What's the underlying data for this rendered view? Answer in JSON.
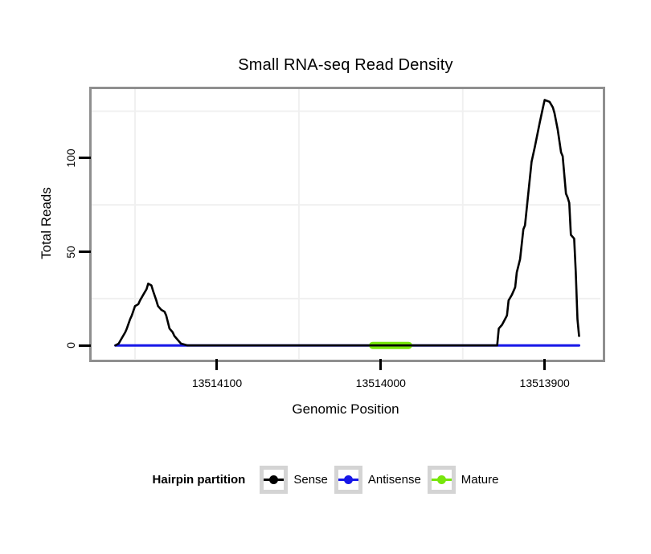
{
  "title": "Small RNA-seq Read Density",
  "colors": {
    "sense": "#000000",
    "antisense": "#1717e8",
    "mature": "#77e60c",
    "panel_border": "#8f8f8f",
    "grid_minor": "#f0f0f0",
    "legend_key_border": "#d4d4d4",
    "text": "#000000",
    "background": "#ffffff"
  },
  "axes": {
    "x_title": "Genomic Position",
    "y_title": "Total Reads"
  },
  "legend": {
    "title": "Hairpin partition",
    "entries": [
      {
        "label": "Sense",
        "color": "#000000"
      },
      {
        "label": "Antisense",
        "color": "#1717e8"
      },
      {
        "label": "Mature",
        "color": "#77e60c"
      }
    ]
  },
  "chart_data": {
    "type": "line",
    "title": "Small RNA-seq Read Density",
    "xlabel": "Genomic Position",
    "ylabel": "Total Reads",
    "x_reversed": true,
    "xlim": [
      13514177,
      13513866
    ],
    "ylim": [
      -7.2,
      137.2
    ],
    "x_ticks": [
      13514100,
      13514000,
      13513900
    ],
    "x_tick_labels": [
      "13514100",
      "13514000",
      "13513900"
    ],
    "y_ticks": [
      0,
      50,
      100
    ],
    "y_tick_labels": [
      "0",
      "50",
      "100"
    ],
    "grid": {
      "color": "#f0f0f0",
      "x_minor": [
        13514150,
        13514050,
        13513950
      ],
      "y_minor": [
        25,
        75,
        125
      ]
    },
    "legend_position": "bottom",
    "series": [
      {
        "name": "Antisense",
        "color": "#1717e8",
        "width": 3,
        "points": [
          [
            13514162,
            0
          ],
          [
            13513879,
            0
          ]
        ]
      },
      {
        "name": "Mature",
        "color": "#77e60c",
        "width": 9,
        "points": [
          [
            13514005,
            0
          ],
          [
            13513983,
            0
          ]
        ]
      },
      {
        "name": "Sense",
        "color": "#000000",
        "width": 2.6,
        "points": [
          [
            13514162,
            0
          ],
          [
            13514160,
            1
          ],
          [
            13514158,
            4
          ],
          [
            13514156,
            7
          ],
          [
            13514155,
            9
          ],
          [
            13514153,
            14
          ],
          [
            13514152,
            16
          ],
          [
            13514150,
            21
          ],
          [
            13514148,
            22
          ],
          [
            13514147,
            24
          ],
          [
            13514145,
            27
          ],
          [
            13514143,
            30
          ],
          [
            13514142,
            33
          ],
          [
            13514140,
            32
          ],
          [
            13514139,
            29
          ],
          [
            13514137,
            24
          ],
          [
            13514136,
            21
          ],
          [
            13514134,
            19
          ],
          [
            13514132,
            18
          ],
          [
            13514131,
            16
          ],
          [
            13514129,
            9
          ],
          [
            13514127,
            7
          ],
          [
            13514126,
            5
          ],
          [
            13514122,
            1
          ],
          [
            13514118,
            0
          ],
          [
            13513929,
            0
          ],
          [
            13513928,
            9
          ],
          [
            13513927,
            10
          ],
          [
            13513926,
            11
          ],
          [
            13513923,
            16
          ],
          [
            13513922,
            24
          ],
          [
            13513920,
            27
          ],
          [
            13513918,
            31
          ],
          [
            13513917,
            39
          ],
          [
            13513915,
            46
          ],
          [
            13513913,
            62
          ],
          [
            13513912,
            64
          ],
          [
            13513908,
            98
          ],
          [
            13513906,
            106
          ],
          [
            13513903,
            119
          ],
          [
            13513901,
            127
          ],
          [
            13513900,
            131
          ],
          [
            13513897,
            130
          ],
          [
            13513895,
            127
          ],
          [
            13513894,
            124
          ],
          [
            13513892,
            115
          ],
          [
            13513890,
            103
          ],
          [
            13513889,
            101
          ],
          [
            13513887,
            81
          ],
          [
            13513886,
            79
          ],
          [
            13513885,
            76
          ],
          [
            13513884,
            59
          ],
          [
            13513882,
            57
          ],
          [
            13513881,
            39
          ],
          [
            13513880,
            14
          ],
          [
            13513879,
            5
          ]
        ]
      }
    ]
  }
}
